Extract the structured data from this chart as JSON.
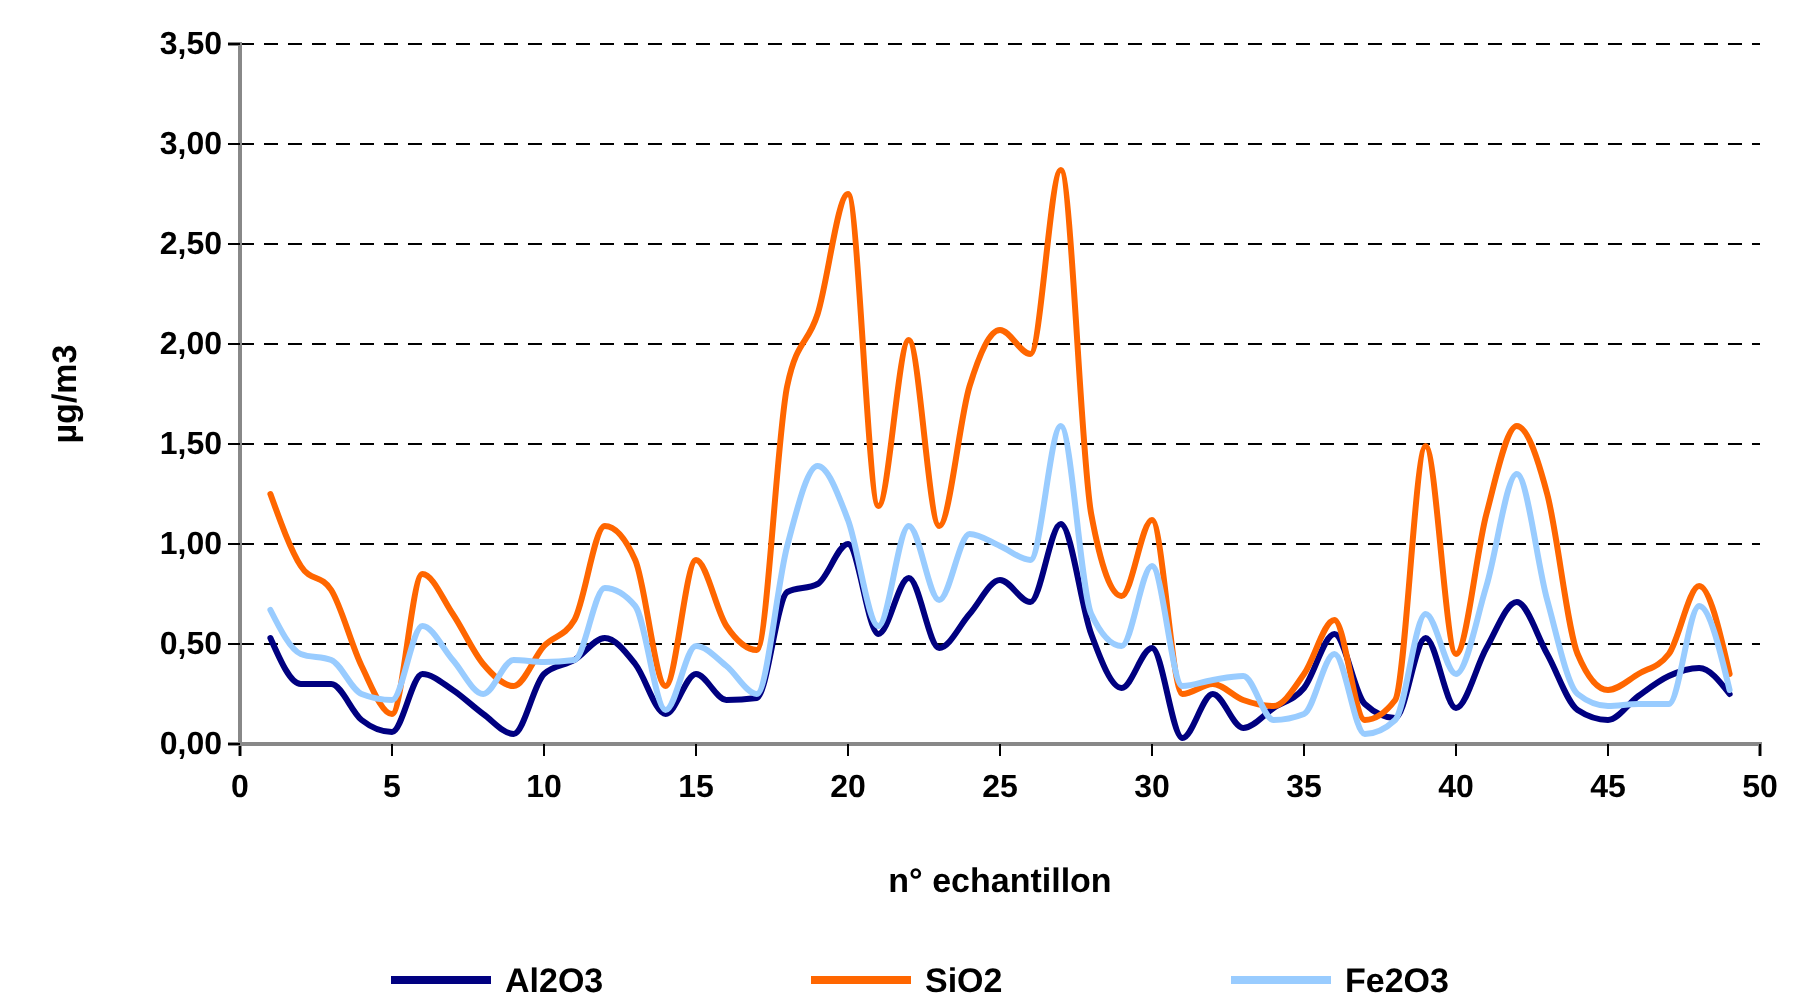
{
  "chart_data": {
    "type": "line",
    "xlabel": "n° echantillon",
    "ylabel": "µg/m3",
    "x": [
      1,
      2,
      3,
      4,
      5,
      6,
      7,
      8,
      9,
      10,
      11,
      12,
      13,
      14,
      15,
      16,
      17,
      18,
      19,
      20,
      21,
      22,
      23,
      24,
      25,
      26,
      27,
      28,
      29,
      30,
      31,
      32,
      33,
      34,
      35,
      36,
      37,
      38,
      39,
      40,
      41,
      42,
      43,
      44,
      45,
      46,
      47,
      48,
      49
    ],
    "series": [
      {
        "name": "Al2O3",
        "color": "#000080",
        "values": [
          0.53,
          0.3,
          0.3,
          0.12,
          0.06,
          0.35,
          0.27,
          0.15,
          0.05,
          0.35,
          0.42,
          0.53,
          0.4,
          0.15,
          0.35,
          0.22,
          0.23,
          0.76,
          0.8,
          1.0,
          0.55,
          0.83,
          0.48,
          0.65,
          0.82,
          0.71,
          1.1,
          0.55,
          0.28,
          0.48,
          0.03,
          0.25,
          0.08,
          0.18,
          0.28,
          0.55,
          0.2,
          0.13,
          0.53,
          0.18,
          0.48,
          0.71,
          0.45,
          0.17,
          0.12,
          0.24,
          0.34,
          0.38,
          0.25
        ]
      },
      {
        "name": "SiO2",
        "color": "#ff6600",
        "values": [
          1.25,
          0.89,
          0.77,
          0.39,
          0.15,
          0.85,
          0.65,
          0.4,
          0.29,
          0.49,
          0.62,
          1.09,
          0.92,
          0.29,
          0.92,
          0.59,
          0.47,
          1.79,
          2.15,
          2.75,
          1.19,
          2.02,
          1.09,
          1.79,
          2.07,
          1.95,
          2.87,
          1.15,
          0.74,
          1.12,
          0.25,
          0.3,
          0.22,
          0.19,
          0.35,
          0.62,
          0.12,
          0.22,
          1.49,
          0.45,
          1.15,
          1.59,
          1.25,
          0.45,
          0.27,
          0.35,
          0.45,
          0.79,
          0.35
        ]
      },
      {
        "name": "Fe2O3",
        "color": "#99ccff",
        "values": [
          0.67,
          0.45,
          0.42,
          0.25,
          0.22,
          0.59,
          0.42,
          0.25,
          0.42,
          0.41,
          0.42,
          0.78,
          0.69,
          0.17,
          0.49,
          0.39,
          0.25,
          0.99,
          1.39,
          1.12,
          0.59,
          1.09,
          0.72,
          1.05,
          0.99,
          0.92,
          1.59,
          0.65,
          0.49,
          0.89,
          0.29,
          0.32,
          0.34,
          0.12,
          0.15,
          0.45,
          0.05,
          0.12,
          0.65,
          0.35,
          0.79,
          1.35,
          0.72,
          0.25,
          0.19,
          0.2,
          0.2,
          0.69,
          0.27
        ]
      }
    ],
    "xlim": [
      0,
      50
    ],
    "xticks": [
      0,
      5,
      10,
      15,
      20,
      25,
      30,
      35,
      40,
      45,
      50
    ],
    "ylim": [
      0,
      3.5
    ],
    "yticks": [
      {
        "value": 0,
        "label": "0,00"
      },
      {
        "value": 0.5,
        "label": "0,50"
      },
      {
        "value": 1,
        "label": "1,00"
      },
      {
        "value": 1.5,
        "label": "1,50"
      },
      {
        "value": 2,
        "label": "2,00"
      },
      {
        "value": 2.5,
        "label": "2,50"
      },
      {
        "value": 3,
        "label": "3,00"
      },
      {
        "value": 3.5,
        "label": "3,50"
      }
    ],
    "grid": "y",
    "legend": "bottom",
    "marker": "none",
    "line_style": "solid"
  }
}
